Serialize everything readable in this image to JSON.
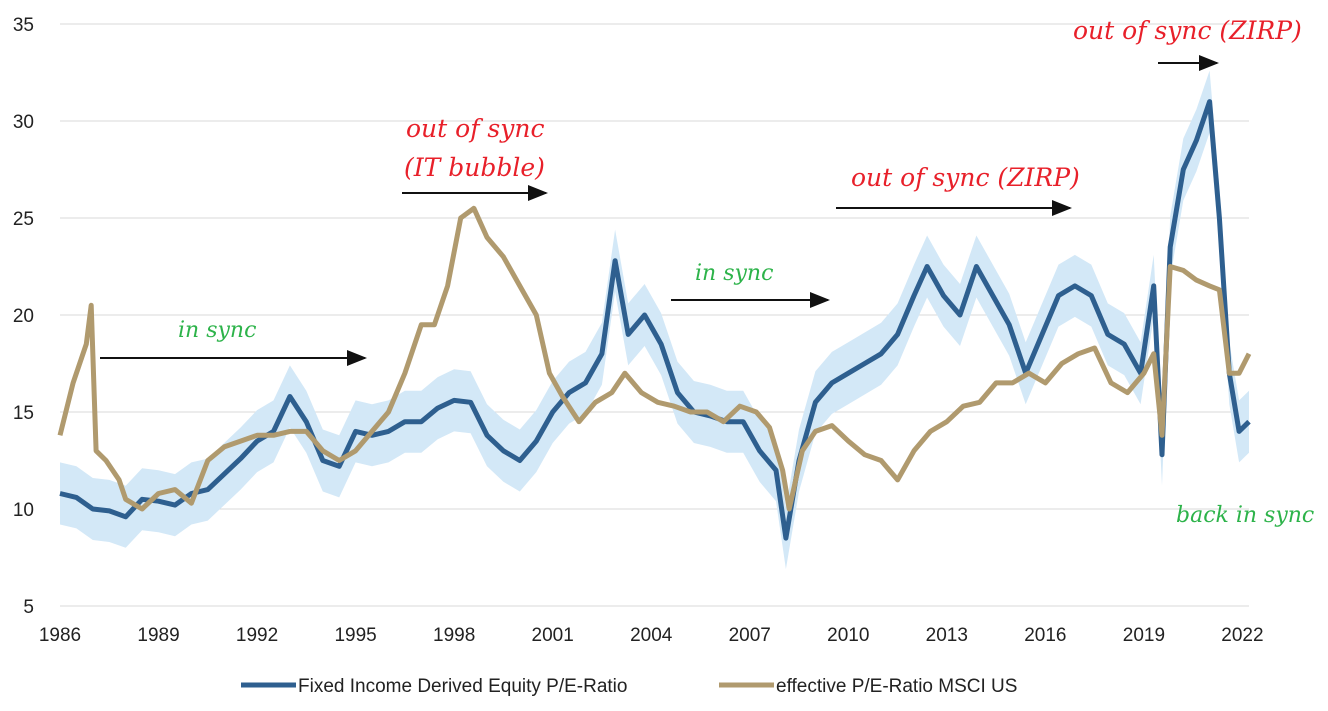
{
  "chart_data": {
    "type": "line",
    "title": "",
    "xlabel": "",
    "ylabel": "",
    "ylim": [
      5,
      35
    ],
    "xlim": [
      1986,
      2022.2
    ],
    "y_ticks": [
      "5",
      "10",
      "15",
      "20",
      "25",
      "30",
      "35"
    ],
    "x_ticks": [
      "1986",
      "1989",
      "1992",
      "1995",
      "1998",
      "2001",
      "2004",
      "2007",
      "2010",
      "2013",
      "2016",
      "2019",
      "2022"
    ],
    "grid": "horizontal",
    "legend_position": "bottom",
    "series": [
      {
        "name": "Fixed Income Derived Equity P/E-Ratio",
        "color": "#2e5f8f",
        "band_color": "#d3e8f7",
        "band_halfwidth": 1.6,
        "x": [
          1986.0,
          1986.5,
          1987.0,
          1987.5,
          1988.0,
          1988.5,
          1989.0,
          1989.5,
          1990.0,
          1990.5,
          1991.0,
          1991.5,
          1992.0,
          1992.5,
          1993.0,
          1993.5,
          1994.0,
          1994.5,
          1995.0,
          1995.5,
          1996.0,
          1996.5,
          1997.0,
          1997.5,
          1998.0,
          1998.5,
          1999.0,
          1999.5,
          2000.0,
          2000.5,
          2001.0,
          2001.5,
          2002.0,
          2002.5,
          2002.9,
          2003.3,
          2003.8,
          2004.3,
          2004.8,
          2005.3,
          2005.8,
          2006.3,
          2006.8,
          2007.3,
          2007.8,
          2008.1,
          2008.5,
          2009.0,
          2009.5,
          2010.0,
          2010.5,
          2011.0,
          2011.5,
          2012.0,
          2012.4,
          2012.9,
          2013.4,
          2013.9,
          2014.4,
          2014.9,
          2015.4,
          2015.9,
          2016.4,
          2016.9,
          2017.4,
          2017.9,
          2018.4,
          2018.9,
          2019.3,
          2019.55,
          2019.8,
          2020.2,
          2020.6,
          2021.0,
          2021.3,
          2021.6,
          2021.9,
          2022.2
        ],
        "y": [
          10.8,
          10.6,
          10.0,
          9.9,
          9.6,
          10.5,
          10.4,
          10.2,
          10.8,
          11.0,
          11.8,
          12.6,
          13.5,
          14.0,
          15.8,
          14.5,
          12.5,
          12.2,
          14.0,
          13.8,
          14.0,
          14.5,
          14.5,
          15.2,
          15.6,
          15.5,
          13.8,
          13.0,
          12.5,
          13.5,
          15.0,
          16.0,
          16.5,
          18.0,
          22.8,
          19.0,
          20.0,
          18.5,
          16.0,
          15.0,
          14.8,
          14.5,
          14.5,
          13.0,
          12.0,
          8.5,
          12.5,
          15.5,
          16.5,
          17.0,
          17.5,
          18.0,
          19.0,
          21.0,
          22.5,
          21.0,
          20.0,
          22.5,
          21.0,
          19.5,
          17.0,
          19.0,
          21.0,
          21.5,
          21.0,
          19.0,
          18.5,
          17.0,
          21.5,
          12.8,
          23.5,
          27.5,
          29.0,
          31.0,
          25.0,
          17.0,
          14.0,
          14.5
        ]
      },
      {
        "name": "effective P/E-Ratio MSCI US",
        "color": "#b09a6e",
        "x": [
          1986.0,
          1986.4,
          1986.8,
          1986.95,
          1987.1,
          1987.4,
          1987.8,
          1988.0,
          1988.5,
          1989.0,
          1989.5,
          1990.0,
          1990.5,
          1991.0,
          1991.5,
          1992.0,
          1992.5,
          1993.0,
          1993.5,
          1994.0,
          1994.5,
          1995.0,
          1995.5,
          1996.0,
          1996.5,
          1997.0,
          1997.4,
          1997.8,
          1998.2,
          1998.6,
          1999.0,
          1999.5,
          2000.0,
          2000.5,
          2000.9,
          2001.3,
          2001.8,
          2002.3,
          2002.8,
          2003.2,
          2003.7,
          2004.2,
          2004.7,
          2005.2,
          2005.7,
          2006.2,
          2006.7,
          2007.2,
          2007.6,
          2008.0,
          2008.2,
          2008.6,
          2009.0,
          2009.5,
          2010.0,
          2010.5,
          2011.0,
          2011.5,
          2012.0,
          2012.5,
          2013.0,
          2013.5,
          2014.0,
          2014.5,
          2015.0,
          2015.5,
          2016.0,
          2016.5,
          2017.0,
          2017.5,
          2018.0,
          2018.5,
          2019.0,
          2019.3,
          2019.55,
          2019.8,
          2020.2,
          2020.6,
          2021.0,
          2021.3,
          2021.6,
          2021.9,
          2022.2
        ],
        "y": [
          13.8,
          16.5,
          18.5,
          20.5,
          13.0,
          12.5,
          11.5,
          10.5,
          10.0,
          10.8,
          11.0,
          10.3,
          12.5,
          13.2,
          13.5,
          13.8,
          13.8,
          14.0,
          14.0,
          13.0,
          12.5,
          13.0,
          14.0,
          15.0,
          17.0,
          19.5,
          19.5,
          21.5,
          25.0,
          25.5,
          24.0,
          23.0,
          21.5,
          20.0,
          17.0,
          15.8,
          14.5,
          15.5,
          16.0,
          17.0,
          16.0,
          15.5,
          15.3,
          15.0,
          15.0,
          14.5,
          15.3,
          15.0,
          14.2,
          12.0,
          10.0,
          13.0,
          14.0,
          14.3,
          13.5,
          12.8,
          12.5,
          11.5,
          13.0,
          14.0,
          14.5,
          15.3,
          15.5,
          16.5,
          16.5,
          17.0,
          16.5,
          17.5,
          18.0,
          18.3,
          16.5,
          16.0,
          17.0,
          18.0,
          13.8,
          22.5,
          22.3,
          21.8,
          21.5,
          21.3,
          17.0,
          17.0,
          18.0
        ]
      }
    ],
    "annotations": [
      {
        "text": "in sync",
        "style": "green"
      },
      {
        "text": "out of  sync",
        "style": "red"
      },
      {
        "text": "(IT bubble)",
        "style": "red"
      },
      {
        "text": "in sync",
        "style": "green"
      },
      {
        "text": "out of  sync (ZIRP)",
        "style": "red"
      },
      {
        "text": "out of  sync (ZIRP)",
        "style": "red"
      },
      {
        "text": "back in sync",
        "style": "green"
      }
    ]
  }
}
